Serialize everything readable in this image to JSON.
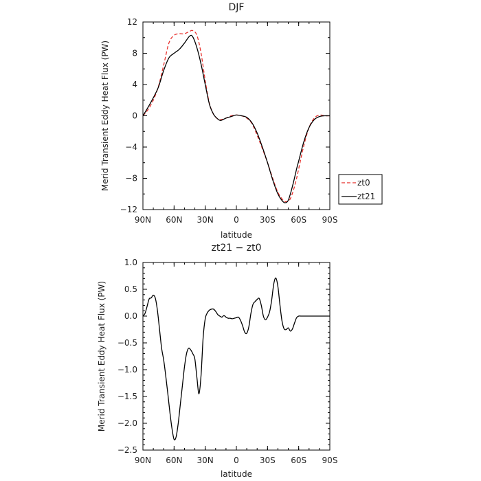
{
  "chart_data": [
    {
      "type": "line",
      "title": "DJF",
      "xlabel": "latitude",
      "ylabel": "Merid Transient Eddy Heat Flux (PW)",
      "xlim": [
        90,
        -90
      ],
      "ylim": [
        -12,
        12
      ],
      "xticks": [
        {
          "value": 90,
          "label": "90N"
        },
        {
          "value": 60,
          "label": "60N"
        },
        {
          "value": 30,
          "label": "30N"
        },
        {
          "value": 0,
          "label": "0"
        },
        {
          "value": -30,
          "label": "30S"
        },
        {
          "value": -60,
          "label": "60S"
        },
        {
          "value": -90,
          "label": "90S"
        }
      ],
      "yticks": [
        {
          "value": 12,
          "label": "12"
        },
        {
          "value": 8,
          "label": "8"
        },
        {
          "value": 4,
          "label": "4"
        },
        {
          "value": 0,
          "label": "0"
        },
        {
          "value": -4,
          "label": "−4"
        },
        {
          "value": -8,
          "label": "−8"
        },
        {
          "value": -12,
          "label": "−12"
        }
      ],
      "legend": {
        "placement": "right",
        "entries": [
          "zt0",
          "zt21"
        ]
      },
      "series": [
        {
          "name": "zt0",
          "color": "#e8322e",
          "dash": "dashed",
          "x": [
            90,
            85,
            80,
            75,
            70,
            65,
            60,
            55,
            50,
            45,
            42,
            38,
            34,
            30,
            26,
            22,
            18,
            15,
            10,
            5,
            0,
            -5,
            -10,
            -15,
            -20,
            -25,
            -30,
            -35,
            -40,
            -45,
            -48,
            -50,
            -52,
            -55,
            -58,
            -60,
            -65,
            -70,
            -75,
            -80,
            -85,
            -90
          ],
          "y": [
            0,
            0.8,
            2.0,
            3.8,
            6.5,
            9.3,
            10.3,
            10.5,
            10.5,
            10.8,
            10.9,
            10.3,
            8.0,
            4.5,
            1.6,
            0.2,
            -0.4,
            -0.5,
            -0.3,
            0.0,
            0.1,
            0.0,
            -0.3,
            -1.0,
            -2.5,
            -4.2,
            -6.0,
            -8.0,
            -9.8,
            -10.8,
            -11.0,
            -10.9,
            -10.6,
            -9.5,
            -8.0,
            -6.8,
            -3.8,
            -1.5,
            -0.3,
            0.1,
            0.0,
            0.0
          ]
        },
        {
          "name": "zt21",
          "color": "#000000",
          "dash": "solid",
          "x": [
            90,
            85,
            80,
            75,
            70,
            65,
            60,
            55,
            50,
            45,
            42,
            38,
            34,
            30,
            26,
            22,
            18,
            15,
            10,
            5,
            0,
            -5,
            -10,
            -15,
            -20,
            -25,
            -30,
            -35,
            -40,
            -45,
            -48,
            -50,
            -52,
            -55,
            -58,
            -60,
            -65,
            -70,
            -75,
            -80,
            -85,
            -90
          ],
          "y": [
            0,
            1.1,
            2.3,
            3.7,
            5.8,
            7.4,
            8.0,
            8.5,
            9.3,
            10.2,
            10.1,
            8.7,
            6.6,
            4.0,
            1.5,
            0.2,
            -0.4,
            -0.6,
            -0.3,
            -0.1,
            0.1,
            0.0,
            -0.2,
            -0.9,
            -2.2,
            -4.0,
            -6.0,
            -8.2,
            -10.0,
            -11.0,
            -11.1,
            -10.8,
            -10.0,
            -8.5,
            -6.8,
            -5.8,
            -3.3,
            -1.5,
            -0.5,
            -0.1,
            0.0,
            0.0
          ]
        }
      ]
    },
    {
      "type": "line",
      "title": "zt21 − zt0",
      "xlabel": "latitude",
      "ylabel": "Merid Transient Eddy Heat Flux (PW)",
      "xlim": [
        90,
        -90
      ],
      "ylim": [
        -2.5,
        1.0
      ],
      "xticks": [
        {
          "value": 90,
          "label": "90N"
        },
        {
          "value": 60,
          "label": "60N"
        },
        {
          "value": 30,
          "label": "30N"
        },
        {
          "value": 0,
          "label": "0"
        },
        {
          "value": -30,
          "label": "30S"
        },
        {
          "value": -60,
          "label": "60S"
        },
        {
          "value": -90,
          "label": "90S"
        }
      ],
      "yticks": [
        {
          "value": 1.0,
          "label": "1.0"
        },
        {
          "value": 0.5,
          "label": "0.5"
        },
        {
          "value": 0.0,
          "label": "0.0"
        },
        {
          "value": -0.5,
          "label": "−0.5"
        },
        {
          "value": -1.0,
          "label": "−1.0"
        },
        {
          "value": -1.5,
          "label": "−1.5"
        },
        {
          "value": -2.0,
          "label": "−2.0"
        },
        {
          "value": -2.5,
          "label": "−2.5"
        }
      ],
      "series": [
        {
          "color": "#000000",
          "dash": "solid",
          "x": [
            90,
            88,
            86,
            84,
            82,
            80,
            78,
            76,
            74,
            72,
            70,
            68,
            66,
            64,
            62,
            60,
            58,
            56,
            54,
            52,
            50,
            48,
            46,
            44,
            42,
            40,
            38,
            36,
            34,
            32,
            30,
            28,
            26,
            24,
            22,
            20,
            18,
            16,
            14,
            12,
            10,
            8,
            6,
            4,
            2,
            0,
            -2,
            -4,
            -6,
            -8,
            -10,
            -12,
            -14,
            -16,
            -18,
            -20,
            -22,
            -24,
            -26,
            -28,
            -30,
            -32,
            -34,
            -36,
            -38,
            -40,
            -42,
            -44,
            -46,
            -48,
            -50,
            -52,
            -54,
            -56,
            -58,
            -60,
            -62,
            -64,
            -66,
            -68,
            -70,
            -72,
            -74,
            -76,
            -78,
            -80,
            -82,
            -84,
            -86,
            -88,
            -90
          ],
          "y": [
            0.0,
            0.05,
            0.18,
            0.32,
            0.34,
            0.39,
            0.33,
            0.1,
            -0.25,
            -0.6,
            -0.82,
            -1.12,
            -1.45,
            -1.8,
            -2.1,
            -2.3,
            -2.25,
            -2.0,
            -1.65,
            -1.3,
            -0.95,
            -0.7,
            -0.6,
            -0.63,
            -0.7,
            -0.8,
            -1.15,
            -1.45,
            -1.1,
            -0.4,
            -0.05,
            0.06,
            0.11,
            0.13,
            0.13,
            0.09,
            0.03,
            0.0,
            -0.02,
            0.01,
            -0.02,
            -0.04,
            -0.04,
            -0.05,
            -0.04,
            -0.03,
            -0.02,
            -0.08,
            -0.18,
            -0.3,
            -0.32,
            -0.2,
            0.05,
            0.22,
            0.27,
            0.31,
            0.33,
            0.2,
            0.0,
            -0.07,
            -0.02,
            0.08,
            0.3,
            0.6,
            0.71,
            0.55,
            0.2,
            -0.1,
            -0.24,
            -0.25,
            -0.22,
            -0.28,
            -0.24,
            -0.13,
            -0.03,
            0.0,
            0.0,
            0.0,
            0.0,
            0.0,
            0.0,
            0.0,
            0.0,
            0.0,
            0.0,
            0.0,
            0.0,
            0.0,
            0.0,
            0.0,
            0.0
          ]
        }
      ]
    }
  ]
}
